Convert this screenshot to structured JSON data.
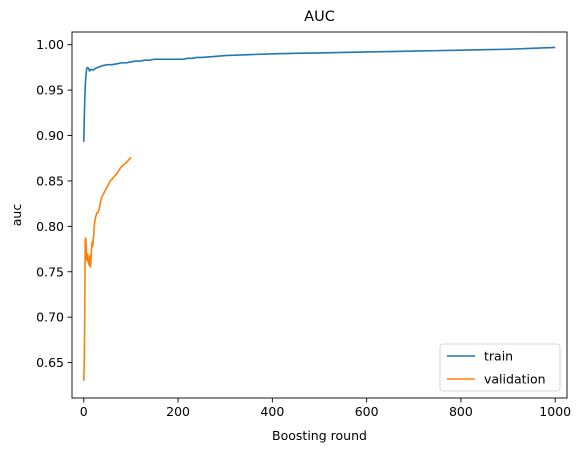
{
  "chart_data": {
    "type": "line",
    "title": "AUC",
    "xlabel": "Boosting round",
    "ylabel": "auc",
    "xlim": [
      -25,
      1025
    ],
    "ylim": [
      0.611,
      1.014
    ],
    "xticks": [
      0,
      200,
      400,
      600,
      800,
      1000
    ],
    "yticks": [
      0.65,
      0.7,
      0.75,
      0.8,
      0.85,
      0.9,
      0.95,
      1.0
    ],
    "xtick_labels": [
      "0",
      "200",
      "400",
      "600",
      "800",
      "1000"
    ],
    "ytick_labels": [
      "0.65",
      "0.70",
      "0.75",
      "0.80",
      "0.85",
      "0.90",
      "0.95",
      "1.00"
    ],
    "grid": false,
    "legend_position": "lower-right",
    "series": [
      {
        "name": "train",
        "color": "#1f77b4",
        "x": [
          0,
          1,
          2,
          3,
          4,
          5,
          6,
          8,
          10,
          12,
          15,
          20,
          25,
          30,
          40,
          50,
          60,
          70,
          80,
          90,
          100,
          110,
          120,
          130,
          140,
          150,
          160,
          170,
          180,
          190,
          200,
          210,
          220,
          230,
          240,
          250,
          275,
          300,
          350,
          400,
          450,
          500,
          550,
          600,
          650,
          700,
          750,
          800,
          850,
          900,
          950,
          1000
        ],
        "values": [
          0.893,
          0.918,
          0.938,
          0.952,
          0.962,
          0.968,
          0.973,
          0.975,
          0.974,
          0.971,
          0.973,
          0.972,
          0.974,
          0.975,
          0.977,
          0.978,
          0.978,
          0.979,
          0.98,
          0.98,
          0.981,
          0.982,
          0.982,
          0.983,
          0.983,
          0.984,
          0.984,
          0.984,
          0.984,
          0.984,
          0.984,
          0.984,
          0.985,
          0.985,
          0.986,
          0.986,
          0.987,
          0.988,
          0.989,
          0.99,
          0.9905,
          0.991,
          0.9915,
          0.992,
          0.9925,
          0.993,
          0.9935,
          0.994,
          0.9945,
          0.995,
          0.996,
          0.997
        ]
      },
      {
        "name": "validation",
        "color": "#ff7f0e",
        "x": [
          0,
          1,
          2,
          3,
          4,
          5,
          6,
          7,
          8,
          9,
          10,
          11,
          12,
          13,
          14,
          15,
          16,
          17,
          18,
          19,
          20,
          21,
          22,
          24,
          26,
          28,
          30,
          32,
          34,
          36,
          38,
          40,
          44,
          48,
          52,
          56,
          60,
          65,
          70,
          75,
          80,
          85,
          90,
          95,
          100
        ],
        "values": [
          0.63,
          0.65,
          0.7,
          0.786,
          0.787,
          0.781,
          0.764,
          0.762,
          0.77,
          0.766,
          0.76,
          0.758,
          0.757,
          0.768,
          0.755,
          0.76,
          0.77,
          0.78,
          0.783,
          0.778,
          0.785,
          0.79,
          0.8,
          0.808,
          0.812,
          0.815,
          0.815,
          0.818,
          0.822,
          0.828,
          0.832,
          0.834,
          0.838,
          0.842,
          0.846,
          0.85,
          0.852,
          0.855,
          0.858,
          0.862,
          0.866,
          0.868,
          0.87,
          0.873,
          0.876
        ]
      }
    ]
  }
}
